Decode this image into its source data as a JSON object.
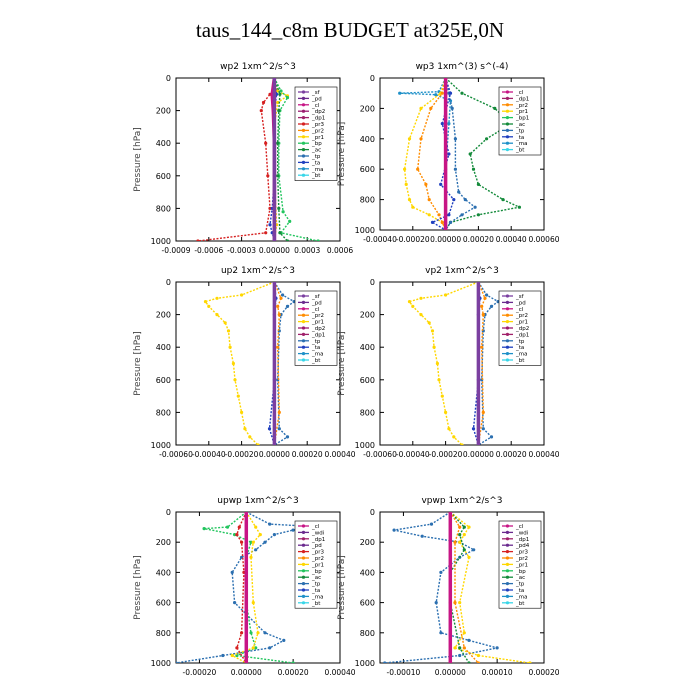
{
  "title": "taus_144_c8m  BUDGET at325E,0N",
  "colors": {
    "sf": "#7b3fa0",
    "pd": "#6a2a8e",
    "cl": "#c71585",
    "dp2": "#9b1a6e",
    "dp1": "#a0206a",
    "pr3": "#d62020",
    "pr2": "#ff8c00",
    "pr1": "#ffd700",
    "bp": "#22c55e",
    "bp1": "#22c55e",
    "ac": "#138a3a",
    "tp": "#2b6fb0",
    "ta": "#1f3fbf",
    "ma": "#1e90c8",
    "bt": "#38d6e8",
    "wdi": "#6a2a8e",
    "dp4": "#9b1a6e",
    "pd4": "#6a2a8e"
  },
  "chart_data": [
    {
      "type": "line",
      "title": "wp2   1xm^2/s^3",
      "ylabel": "Pressure [hPa]",
      "ylim": [
        1000,
        0
      ],
      "xlim": [
        -0.0009,
        0.0006
      ],
      "xticks": [
        "-0.0009",
        "-0.0006",
        "-0.0003",
        "0.00000",
        "0.0003",
        "0.0006"
      ],
      "xtick_values": [
        -0.0009,
        -0.0006,
        -0.0003,
        0,
        0.0003,
        0.0006
      ],
      "yticks": [
        0,
        200,
        400,
        600,
        800,
        1000
      ],
      "legend": [
        "sf",
        "pd",
        "cl",
        "dp2",
        "dp1",
        "pr3",
        "pr2",
        "pr1",
        "bp",
        "ac",
        "tp",
        "ta",
        "ma",
        "bt"
      ],
      "series": [
        {
          "name": "pr3",
          "p": [
            0,
            80,
            100,
            150,
            200,
            400,
            600,
            800,
            950,
            1000
          ],
          "x": [
            0,
            2e-05,
            -4e-05,
            -0.0001,
            -0.00012,
            -8e-05,
            -6e-05,
            -4e-05,
            -8e-05,
            -0.0007
          ]
        },
        {
          "name": "pr1",
          "p": [
            0,
            80,
            110,
            150,
            300,
            600,
            900,
            1000
          ],
          "x": [
            0,
            3e-05,
            0.00012,
            3e-05,
            0.0,
            0.0,
            2e-05,
            0.0
          ]
        },
        {
          "name": "bp",
          "p": [
            0,
            80,
            120,
            200,
            400,
            600,
            820,
            880,
            950,
            1000
          ],
          "x": [
            0,
            6e-05,
            0.00012,
            5e-05,
            4e-05,
            4e-05,
            8e-05,
            0.00014,
            6e-05,
            0.0004
          ]
        },
        {
          "name": "ac",
          "p": [
            0,
            100,
            200,
            400,
            600,
            800,
            950,
            1000
          ],
          "x": [
            0,
            5e-05,
            4e-05,
            3e-05,
            3e-05,
            4e-05,
            5e-05,
            0.00012
          ]
        },
        {
          "name": "ta",
          "p": [
            0,
            100,
            200,
            400,
            600,
            800,
            900,
            950,
            1000
          ],
          "x": [
            0,
            2e-05,
            0.0,
            0.0,
            0.0,
            -2e-05,
            -4e-05,
            -2e-05,
            0.0
          ]
        },
        {
          "name": "cl",
          "p": [
            0,
            100,
            200,
            400,
            600,
            800,
            1000
          ],
          "x": [
            0,
            -2e-05,
            -1e-05,
            0,
            0,
            0,
            0
          ]
        },
        {
          "name": "sf",
          "p": [
            0,
            1000
          ],
          "x": [
            0,
            0
          ]
        }
      ]
    },
    {
      "type": "line",
      "title": "wp3   1xm^(3) s^(-4)",
      "ylabel": "Pressure [hPa]",
      "ylim": [
        1000,
        0
      ],
      "xlim": [
        -0.0004,
        0.0006
      ],
      "xticks": [
        "-0.00040",
        "-0.00020",
        "0.00000",
        "0.00020",
        "0.00040",
        "0.00060"
      ],
      "xtick_values": [
        -0.0004,
        -0.0002,
        0,
        0.0002,
        0.0004,
        0.0006
      ],
      "yticks": [
        0,
        200,
        400,
        600,
        800,
        1000
      ],
      "legend": [
        "cl",
        "dp1",
        "pr2",
        "pr1",
        "bp1",
        "ac",
        "tp",
        "ta",
        "ma",
        "bt"
      ],
      "series": [
        {
          "name": "ma",
          "p": [
            0,
            90,
            100,
            110,
            150,
            300,
            600,
            900,
            1000
          ],
          "x": [
            0,
            -4e-05,
            -0.00028,
            -6e-05,
            3e-05,
            2e-05,
            0.0,
            0.0,
            0.0
          ]
        },
        {
          "name": "ac",
          "p": [
            0,
            100,
            200,
            300,
            400,
            500,
            600,
            700,
            800,
            850,
            900,
            950,
            1000
          ],
          "x": [
            0,
            0.0001,
            0.0003,
            0.0004,
            0.00025,
            0.00015,
            0.00017,
            0.0002,
            0.00035,
            0.00045,
            0.0002,
            3e-05,
            0.0
          ]
        },
        {
          "name": "pr1",
          "p": [
            0,
            100,
            200,
            400,
            600,
            700,
            800,
            850,
            900,
            950,
            1000
          ],
          "x": [
            0,
            -3e-05,
            -0.00015,
            -0.00022,
            -0.00025,
            -0.00024,
            -0.00022,
            -0.0002,
            -0.0001,
            -2e-05,
            0.0
          ]
        },
        {
          "name": "pr2",
          "p": [
            0,
            100,
            200,
            400,
            600,
            700,
            800,
            900,
            950,
            1000
          ],
          "x": [
            0,
            -2e-05,
            -9e-05,
            -0.00015,
            -0.00017,
            -0.00012,
            -0.0001,
            -4e-05,
            -2e-05,
            0.0
          ]
        },
        {
          "name": "tp",
          "p": [
            0,
            100,
            200,
            400,
            600,
            750,
            800,
            850,
            900,
            950,
            1000
          ],
          "x": [
            0,
            2e-05,
            4e-05,
            6e-05,
            6e-05,
            8e-05,
            0.00012,
            0.00018,
            0.0001,
            3e-05,
            0.0
          ]
        },
        {
          "name": "ta",
          "p": [
            0,
            100,
            300,
            500,
            700,
            800,
            900,
            950,
            1000
          ],
          "x": [
            0,
            3e-05,
            -2e-05,
            2e-05,
            -3e-05,
            5e-05,
            2e-05,
            -8e-05,
            0.0
          ]
        },
        {
          "name": "cl",
          "p": [
            0,
            1000
          ],
          "x": [
            0,
            0
          ]
        }
      ]
    },
    {
      "type": "line",
      "title": "up2   1xm^2/s^3",
      "ylabel": "Pressure [hPa]",
      "ylim": [
        1000,
        0
      ],
      "xlim": [
        -0.0006,
        0.0004
      ],
      "xticks": [
        "-0.00060",
        "-0.00040",
        "-0.00020",
        "0.00000",
        "0.00020",
        "0.00040"
      ],
      "xtick_values": [
        -0.0006,
        -0.0004,
        -0.0002,
        0,
        0.0002,
        0.0004
      ],
      "yticks": [
        0,
        200,
        400,
        600,
        800,
        1000
      ],
      "legend": [
        "sf",
        "pd",
        "cl",
        "pr2",
        "pr1",
        "dp2",
        "dp1",
        "tp",
        "ta",
        "ma",
        "bt"
      ],
      "series": [
        {
          "name": "pr1",
          "p": [
            0,
            80,
            100,
            120,
            150,
            200,
            250,
            300,
            400,
            500,
            600,
            700,
            800,
            900,
            950,
            1000
          ],
          "x": [
            0,
            -0.0002,
            -0.00035,
            -0.00042,
            -0.0004,
            -0.00035,
            -0.0003,
            -0.00028,
            -0.00027,
            -0.00025,
            -0.00024,
            -0.00022,
            -0.0002,
            -0.00018,
            -0.00015,
            -0.0001
          ]
        },
        {
          "name": "tp",
          "p": [
            0,
            80,
            120,
            150,
            200,
            300,
            600,
            900,
            950,
            1000
          ],
          "x": [
            0,
            5e-05,
            0.00012,
            8e-05,
            4e-05,
            3e-05,
            2e-05,
            3e-05,
            8e-05,
            0.0
          ]
        },
        {
          "name": "pr2",
          "p": [
            0,
            100,
            150,
            200,
            400,
            800,
            1000
          ],
          "x": [
            0,
            4e-05,
            2e-05,
            3e-05,
            2e-05,
            3e-05,
            0.0
          ]
        },
        {
          "name": "ta",
          "p": [
            0,
            100,
            200,
            600,
            900,
            1000
          ],
          "x": [
            0,
            1e-05,
            0.0,
            0.0,
            -3e-05,
            0.0
          ]
        },
        {
          "name": "sf",
          "p": [
            0,
            1000
          ],
          "x": [
            0,
            0
          ]
        }
      ]
    },
    {
      "type": "line",
      "title": "vp2   1xm^2/s^3",
      "ylabel": "Pressure [hPa]",
      "ylim": [
        1000,
        0
      ],
      "xlim": [
        -0.0006,
        0.0004
      ],
      "xticks": [
        "-0.00060",
        "-0.00040",
        "-0.00020",
        "0.00000",
        "0.00020",
        "0.00040"
      ],
      "xtick_values": [
        -0.0006,
        -0.0004,
        -0.0002,
        0,
        0.0002,
        0.0004
      ],
      "yticks": [
        0,
        200,
        400,
        600,
        800,
        1000
      ],
      "legend": [
        "sf",
        "pd",
        "cl",
        "pr2",
        "pr1",
        "dp2",
        "dp1",
        "tp",
        "ta",
        "ma",
        "bt"
      ],
      "series": [
        {
          "name": "pr1",
          "p": [
            0,
            80,
            100,
            120,
            150,
            200,
            250,
            300,
            400,
            500,
            600,
            700,
            800,
            900,
            950,
            1000
          ],
          "x": [
            0,
            -0.0002,
            -0.00035,
            -0.00042,
            -0.0004,
            -0.00035,
            -0.0003,
            -0.00028,
            -0.00027,
            -0.00025,
            -0.00024,
            -0.00022,
            -0.0002,
            -0.00018,
            -0.00015,
            -0.0001
          ]
        },
        {
          "name": "tp",
          "p": [
            0,
            80,
            120,
            150,
            200,
            300,
            600,
            900,
            950,
            1000
          ],
          "x": [
            0,
            5e-05,
            0.00012,
            8e-05,
            4e-05,
            3e-05,
            2e-05,
            3e-05,
            8e-05,
            0.0
          ]
        },
        {
          "name": "pr2",
          "p": [
            0,
            100,
            150,
            200,
            400,
            800,
            1000
          ],
          "x": [
            0,
            4e-05,
            2e-05,
            3e-05,
            2e-05,
            3e-05,
            0.0
          ]
        },
        {
          "name": "ta",
          "p": [
            0,
            100,
            200,
            600,
            900,
            1000
          ],
          "x": [
            0,
            1e-05,
            0.0,
            0.0,
            -3e-05,
            0.0
          ]
        },
        {
          "name": "sf",
          "p": [
            0,
            1000
          ],
          "x": [
            0,
            0
          ]
        }
      ]
    },
    {
      "type": "line",
      "title": "upwp   1xm^2/s^3",
      "ylabel": "Pressure [hPa]",
      "ylim": [
        1000,
        0
      ],
      "xlim": [
        -0.0003,
        0.0004
      ],
      "xticks": [
        "-0.00020",
        "0.00000",
        "0.00020",
        "0.00040"
      ],
      "xtick_values": [
        -0.0002,
        0,
        0.0002,
        0.0004
      ],
      "yticks": [
        0,
        200,
        400,
        600,
        800,
        1000
      ],
      "legend": [
        "cl",
        "wdi",
        "dp1",
        "pd",
        "pr3",
        "pr2",
        "pr1",
        "bp",
        "ac",
        "tp",
        "ta",
        "ma",
        "bt"
      ],
      "series": [
        {
          "name": "tp",
          "p": [
            0,
            80,
            100,
            120,
            150,
            200,
            250,
            300,
            400,
            600,
            800,
            850,
            900,
            950,
            1000
          ],
          "x": [
            0,
            0.0001,
            0.00033,
            0.0002,
            0.00012,
            8e-05,
            4e-05,
            -2e-05,
            -6e-05,
            -5e-05,
            8e-05,
            0.00016,
            0.0001,
            -0.0001,
            -0.0003
          ]
        },
        {
          "name": "bp",
          "p": [
            0,
            100,
            110,
            150,
            200,
            300,
            600,
            800,
            900,
            950,
            1000
          ],
          "x": [
            0,
            -8e-05,
            -0.00018,
            -5e-05,
            2e-05,
            0.0,
            0.0,
            2e-05,
            4e-05,
            -4e-05,
            0.0002
          ]
        },
        {
          "name": "pr1",
          "p": [
            0,
            100,
            150,
            200,
            300,
            600,
            800,
            900,
            950,
            1000
          ],
          "x": [
            0,
            4e-05,
            6e-05,
            3e-05,
            2e-05,
            3e-05,
            5e-05,
            3e-05,
            -6e-05,
            0.0
          ]
        },
        {
          "name": "pr3",
          "p": [
            0,
            100,
            150,
            200,
            400,
            800,
            900,
            1000
          ],
          "x": [
            0,
            -3e-05,
            -4e-05,
            -2e-05,
            -1e-05,
            -2e-05,
            -4e-05,
            0.0
          ]
        },
        {
          "name": "cl",
          "p": [
            0,
            1000
          ],
          "x": [
            0,
            0
          ]
        }
      ]
    },
    {
      "type": "line",
      "title": "vpwp   1xm^2/s^3",
      "ylabel": "Pressure [hPa]",
      "ylim": [
        1000,
        0
      ],
      "xlim": [
        -0.00015,
        0.0002
      ],
      "xticks": [
        "-0.00010",
        "0.00000",
        "0.00010",
        "0.00020"
      ],
      "xtick_values": [
        -0.0001,
        0,
        0.0001,
        0.0002
      ],
      "yticks": [
        0,
        200,
        400,
        600,
        800,
        1000
      ],
      "legend": [
        "cl",
        "wdi",
        "dp1",
        "pd4",
        "pr3",
        "pr2",
        "pr1",
        "bp",
        "ac",
        "tp",
        "ta",
        "ma",
        "bt"
      ],
      "series": [
        {
          "name": "tp",
          "p": [
            0,
            80,
            120,
            160,
            200,
            250,
            300,
            400,
            600,
            800,
            850,
            900,
            950,
            1000
          ],
          "x": [
            0,
            -4e-05,
            -0.00012,
            -6e-05,
            2e-05,
            5e-05,
            2e-05,
            -2e-05,
            -3e-05,
            -2e-05,
            4e-05,
            0.0001,
            2e-05,
            -0.00014
          ]
        },
        {
          "name": "pr1",
          "p": [
            0,
            100,
            150,
            200,
            300,
            600,
            800,
            900,
            950,
            1000
          ],
          "x": [
            0,
            4e-05,
            3e-05,
            2e-05,
            4e-05,
            2e-05,
            3e-05,
            1e-05,
            6e-05,
            0.00017
          ]
        },
        {
          "name": "ac",
          "p": [
            0,
            100,
            150,
            250,
            400,
            600,
            900,
            1000
          ],
          "x": [
            0,
            3e-05,
            2e-05,
            3e-05,
            0.0,
            0.0,
            2e-05,
            4e-05
          ]
        },
        {
          "name": "pr2",
          "p": [
            0,
            100,
            200,
            600,
            900,
            1000
          ],
          "x": [
            0,
            2e-05,
            1e-05,
            1e-05,
            3e-05,
            6e-05
          ]
        },
        {
          "name": "cl",
          "p": [
            0,
            1000
          ],
          "x": [
            0,
            0
          ]
        }
      ]
    }
  ]
}
